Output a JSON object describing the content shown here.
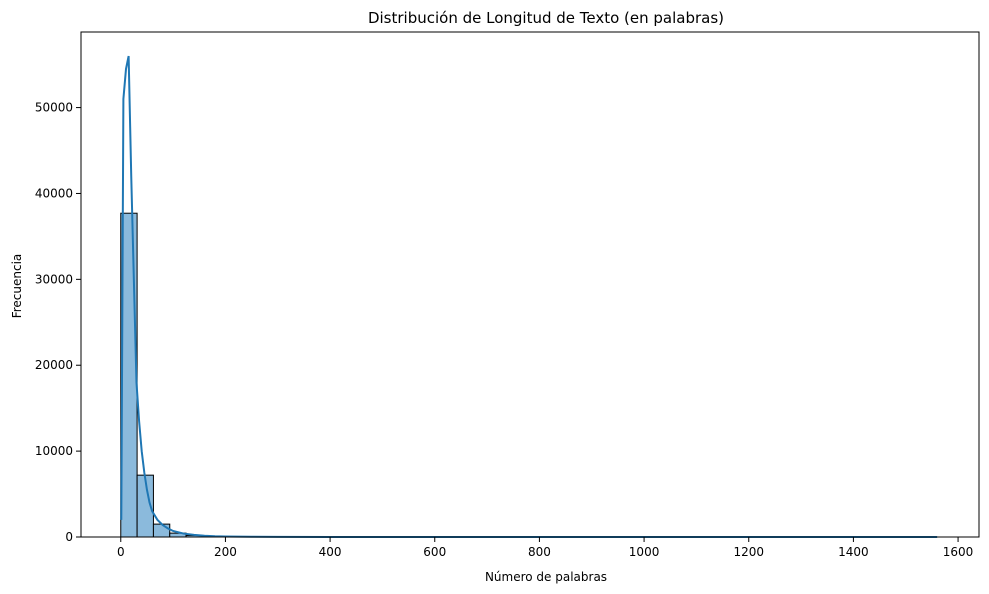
{
  "chart_data": {
    "type": "bar",
    "subtype": "histogram_with_kde",
    "title": "Distribución de Longitud de Texto (en palabras)",
    "xlabel": "Número de palabras",
    "ylabel": "Frecuencia",
    "xlim": [
      -76,
      1640
    ],
    "ylim": [
      0,
      58800
    ],
    "xticks": [
      0,
      200,
      400,
      600,
      800,
      1000,
      1200,
      1400,
      1600
    ],
    "yticks": [
      0,
      10000,
      20000,
      30000,
      40000,
      50000
    ],
    "grid": false,
    "bin_width": 31.2,
    "bin_start": 0,
    "bins": [
      {
        "x0": 0,
        "x1": 31.2,
        "count": 37700
      },
      {
        "x0": 31.2,
        "x1": 62.4,
        "count": 7200
      },
      {
        "x0": 62.4,
        "x1": 93.6,
        "count": 1500
      },
      {
        "x0": 93.6,
        "x1": 124.8,
        "count": 450
      },
      {
        "x0": 124.8,
        "x1": 156,
        "count": 180
      },
      {
        "x0": 156,
        "x1": 187.2,
        "count": 80
      },
      {
        "x0": 187.2,
        "x1": 218.4,
        "count": 40
      },
      {
        "x0": 218.4,
        "x1": 249.6,
        "count": 20
      },
      {
        "x0": 249.6,
        "x1": 280.8,
        "count": 10
      },
      {
        "x0": 280.8,
        "x1": 312,
        "count": 5
      }
    ],
    "kde": {
      "x": [
        1,
        5,
        10,
        15,
        20,
        25,
        30,
        35,
        40,
        45,
        50,
        55,
        60,
        70,
        80,
        90,
        100,
        120,
        140,
        160,
        180,
        200,
        250,
        300,
        400,
        600,
        800,
        1000,
        1200,
        1400,
        1560
      ],
      "y": [
        2000,
        51000,
        54500,
        56000,
        42000,
        30000,
        18000,
        13500,
        10000,
        7500,
        5500,
        4000,
        3000,
        2000,
        1400,
        1000,
        700,
        400,
        250,
        150,
        90,
        60,
        25,
        10,
        3,
        1,
        0,
        0,
        0,
        0,
        0
      ]
    },
    "colors": {
      "bar_fill": "#8bbadc",
      "bar_edge": "#000000",
      "kde_line": "#1f77b4"
    }
  }
}
